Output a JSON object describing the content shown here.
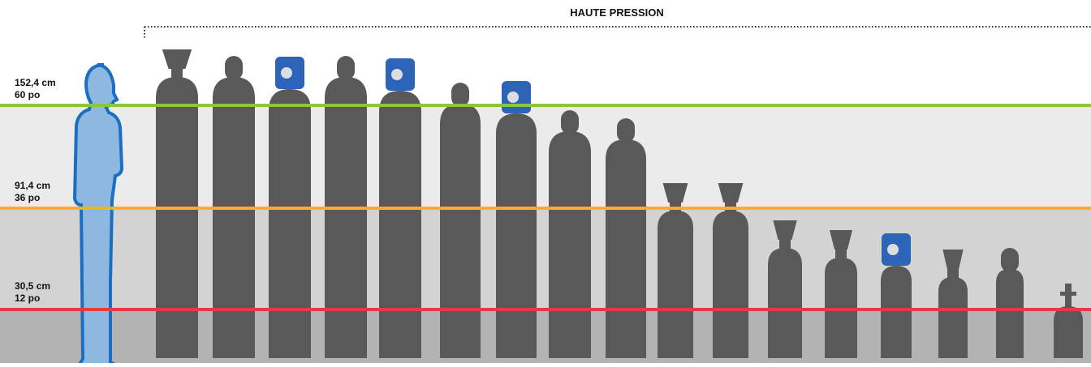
{
  "header": {
    "title": "HAUTE PRESSION"
  },
  "levels": [
    {
      "metric": "152,4 cm",
      "imperial": "60 po"
    },
    {
      "metric": "91,4 cm",
      "imperial": "36 po"
    },
    {
      "metric": "30,5 cm",
      "imperial": "12 po"
    }
  ]
}
